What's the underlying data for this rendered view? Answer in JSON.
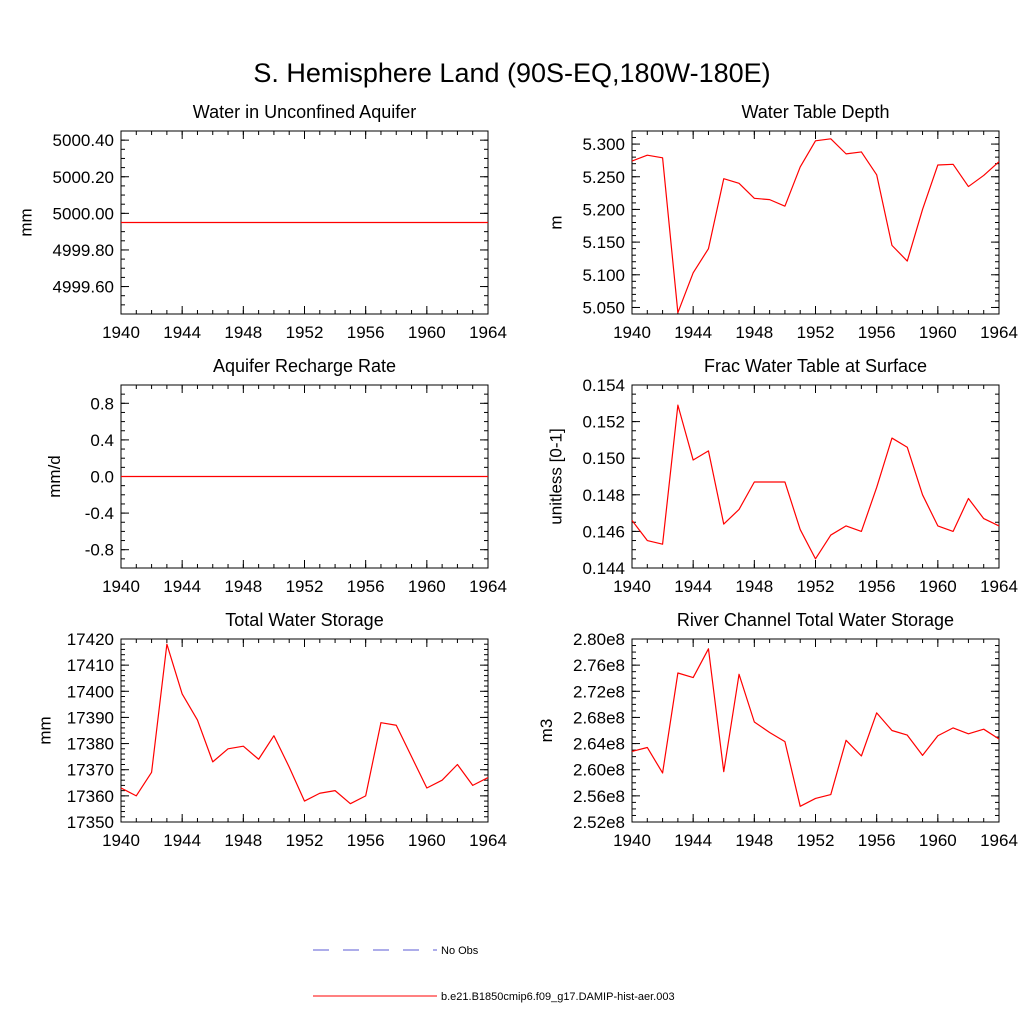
{
  "figure": {
    "title": "S. Hemisphere Land (90S-EQ,180W-180E)"
  },
  "legend": {
    "items": [
      {
        "label": "No Obs",
        "color": "#5b5bd6",
        "style": "dashed"
      },
      {
        "label": "b.e21.B1850cmip6.f09_g17.DAMIP-hist-aer.003",
        "color": "#ff0000",
        "style": "solid"
      }
    ]
  },
  "chart_data": [
    {
      "type": "line",
      "title": "Water in Unconfined Aquifer",
      "xlabel": "",
      "ylabel": "mm",
      "xlim": [
        1940,
        1964
      ],
      "ylim": [
        4999.45,
        5000.45
      ],
      "xticks": [
        1940,
        1944,
        1948,
        1952,
        1956,
        1960,
        1964
      ],
      "yticks": [
        4999.6,
        4999.8,
        5000.0,
        5000.2,
        5000.4
      ],
      "ytick_labels": [
        "4999.60",
        "4999.80",
        "5000.00",
        "5000.20",
        "5000.40"
      ],
      "yminor": 0.05,
      "series": [
        {
          "color": "#ff0000",
          "x": [
            1940,
            1964
          ],
          "y": [
            4999.95,
            4999.95
          ]
        }
      ]
    },
    {
      "type": "line",
      "title": "Water Table Depth",
      "xlabel": "",
      "ylabel": "m",
      "xlim": [
        1940,
        1964
      ],
      "ylim": [
        5.04,
        5.32
      ],
      "xticks": [
        1940,
        1944,
        1948,
        1952,
        1956,
        1960,
        1964
      ],
      "yticks": [
        5.05,
        5.1,
        5.15,
        5.2,
        5.25,
        5.3
      ],
      "ytick_labels": [
        "5.050",
        "5.100",
        "5.150",
        "5.200",
        "5.250",
        "5.300"
      ],
      "yminor": 0.01,
      "series": [
        {
          "color": "#ff0000",
          "x": [
            1940,
            1941,
            1942,
            1943,
            1944,
            1945,
            1946,
            1947,
            1948,
            1949,
            1950,
            1951,
            1952,
            1953,
            1954,
            1955,
            1956,
            1957,
            1958,
            1959,
            1960,
            1961,
            1962,
            1963,
            1964
          ],
          "y": [
            5.274,
            5.283,
            5.279,
            5.042,
            5.103,
            5.14,
            5.247,
            5.24,
            5.217,
            5.215,
            5.205,
            5.265,
            5.305,
            5.308,
            5.285,
            5.288,
            5.253,
            5.145,
            5.121,
            5.2,
            5.268,
            5.269,
            5.235,
            5.252,
            5.273
          ]
        }
      ]
    },
    {
      "type": "line",
      "title": "Aquifer Recharge Rate",
      "xlabel": "",
      "ylabel": "mm/d",
      "xlim": [
        1940,
        1964
      ],
      "ylim": [
        -1.0,
        1.0
      ],
      "xticks": [
        1940,
        1944,
        1948,
        1952,
        1956,
        1960,
        1964
      ],
      "yticks": [
        -0.8,
        -0.4,
        0.0,
        0.4,
        0.8
      ],
      "ytick_labels": [
        "-0.8",
        "-0.4",
        "0.0",
        "0.4",
        "0.8"
      ],
      "yminor": 0.1,
      "series": [
        {
          "color": "#ff0000",
          "x": [
            1940,
            1964
          ],
          "y": [
            0.0,
            0.0
          ]
        }
      ]
    },
    {
      "type": "line",
      "title": "Frac Water Table at Surface",
      "xlabel": "",
      "ylabel": "unitless [0-1]",
      "xlim": [
        1940,
        1964
      ],
      "ylim": [
        0.144,
        0.154
      ],
      "xticks": [
        1940,
        1944,
        1948,
        1952,
        1956,
        1960,
        1964
      ],
      "yticks": [
        0.144,
        0.146,
        0.148,
        0.15,
        0.152,
        0.154
      ],
      "ytick_labels": [
        "0.144",
        "0.146",
        "0.148",
        "0.150",
        "0.152",
        "0.154"
      ],
      "yminor": 0.0005,
      "series": [
        {
          "color": "#ff0000",
          "x": [
            1940,
            1941,
            1942,
            1943,
            1944,
            1945,
            1946,
            1947,
            1948,
            1949,
            1950,
            1951,
            1952,
            1953,
            1954,
            1955,
            1956,
            1957,
            1958,
            1959,
            1960,
            1961,
            1962,
            1963,
            1964
          ],
          "y": [
            0.1466,
            0.1455,
            0.1453,
            0.1529,
            0.1499,
            0.1504,
            0.1464,
            0.1472,
            0.1487,
            0.1487,
            0.1487,
            0.1461,
            0.1445,
            0.1458,
            0.1463,
            0.146,
            0.1484,
            0.1511,
            0.1506,
            0.148,
            0.1463,
            0.146,
            0.1478,
            0.1467,
            0.1463
          ]
        }
      ]
    },
    {
      "type": "line",
      "title": "Total Water Storage",
      "xlabel": "",
      "ylabel": "mm",
      "xlim": [
        1940,
        1964
      ],
      "ylim": [
        17350,
        17420
      ],
      "xticks": [
        1940,
        1944,
        1948,
        1952,
        1956,
        1960,
        1964
      ],
      "yticks": [
        17350,
        17360,
        17370,
        17380,
        17390,
        17400,
        17410,
        17420
      ],
      "ytick_labels": [
        "17350",
        "17360",
        "17370",
        "17380",
        "17390",
        "17400",
        "17410",
        "17420"
      ],
      "yminor": 2,
      "series": [
        {
          "color": "#ff0000",
          "x": [
            1940,
            1941,
            1942,
            1943,
            1944,
            1945,
            1946,
            1947,
            1948,
            1949,
            1950,
            1951,
            1952,
            1953,
            1954,
            1955,
            1956,
            1957,
            1958,
            1959,
            1960,
            1961,
            1962,
            1963,
            1964
          ],
          "y": [
            17363,
            17360,
            17369,
            17418,
            17399,
            17389,
            17373,
            17378,
            17379,
            17374,
            17383,
            17371,
            17358,
            17361,
            17362,
            17357,
            17360,
            17388,
            17387,
            17375,
            17363,
            17366,
            17372,
            17364,
            17367
          ]
        }
      ]
    },
    {
      "type": "line",
      "title": "River Channel Total Water Storage",
      "xlabel": "",
      "ylabel": "m3",
      "xlim": [
        1940,
        1964
      ],
      "ylim": [
        252000000.0,
        280000000.0
      ],
      "xticks": [
        1940,
        1944,
        1948,
        1952,
        1956,
        1960,
        1964
      ],
      "yticks": [
        252000000.0,
        256000000.0,
        260000000.0,
        264000000.0,
        268000000.0,
        272000000.0,
        276000000.0,
        280000000.0
      ],
      "ytick_labels": [
        "2.52e8",
        "2.56e8",
        "2.60e8",
        "2.64e8",
        "2.68e8",
        "2.72e8",
        "2.76e8",
        "2.80e8"
      ],
      "yminor": 1000000.0,
      "series": [
        {
          "color": "#ff0000",
          "x": [
            1940,
            1941,
            1942,
            1943,
            1944,
            1945,
            1946,
            1947,
            1948,
            1949,
            1950,
            1951,
            1952,
            1953,
            1954,
            1955,
            1956,
            1957,
            1958,
            1959,
            1960,
            1961,
            1962,
            1963,
            1964
          ],
          "y": [
            262800000.0,
            263400000.0,
            259500000.0,
            274800000.0,
            274100000.0,
            278500000.0,
            259700000.0,
            274600000.0,
            267300000.0,
            265700000.0,
            264300000.0,
            254400000.0,
            255600000.0,
            256200000.0,
            264500000.0,
            262100000.0,
            268700000.0,
            266000000.0,
            265300000.0,
            262200000.0,
            265200000.0,
            266400000.0,
            265500000.0,
            266200000.0,
            264700000.0
          ]
        }
      ]
    }
  ]
}
